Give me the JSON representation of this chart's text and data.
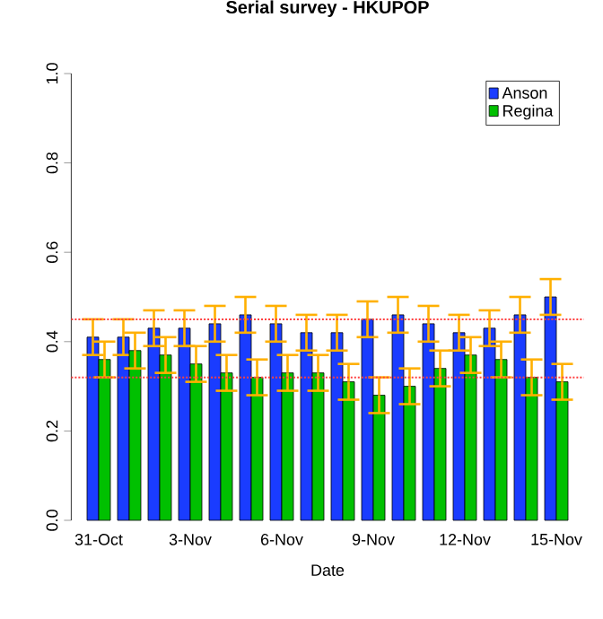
{
  "chart_data": {
    "type": "bar",
    "title": "Serial survey - HKUPOP",
    "xlabel": "Date",
    "categories": [
      "31-Oct",
      null,
      null,
      "3-Nov",
      null,
      null,
      "6-Nov",
      null,
      null,
      "9-Nov",
      null,
      null,
      "12-Nov",
      null,
      null,
      "15-Nov"
    ],
    "series": [
      {
        "name": "Anson",
        "color": "#1a3cff",
        "values": [
          0.41,
          0.41,
          0.43,
          0.43,
          0.44,
          0.46,
          0.44,
          0.42,
          0.42,
          0.45,
          0.46,
          0.44,
          0.42,
          0.43,
          0.46,
          0.5
        ],
        "errors": [
          0.04,
          0.04,
          0.04,
          0.04,
          0.04,
          0.04,
          0.04,
          0.04,
          0.04,
          0.04,
          0.04,
          0.04,
          0.04,
          0.04,
          0.04,
          0.04
        ]
      },
      {
        "name": "Regina",
        "color": "#00c000",
        "values": [
          0.36,
          0.38,
          0.37,
          0.35,
          0.33,
          0.32,
          0.33,
          0.33,
          0.31,
          0.28,
          0.3,
          0.34,
          0.37,
          0.36,
          0.32,
          0.31
        ],
        "errors": [
          0.04,
          0.04,
          0.04,
          0.04,
          0.04,
          0.04,
          0.04,
          0.04,
          0.04,
          0.04,
          0.04,
          0.04,
          0.04,
          0.04,
          0.04,
          0.04
        ]
      }
    ],
    "ylim": [
      0,
      1
    ],
    "yticks": [
      {
        "value": 0,
        "label": "0.0"
      },
      {
        "value": 0.2,
        "label": "0.2"
      },
      {
        "value": 0.4,
        "label": "0.4"
      },
      {
        "value": 0.6,
        "label": "0.6"
      },
      {
        "value": 0.8,
        "label": "0.8"
      },
      {
        "value": 1,
        "label": "1.0"
      }
    ],
    "ref_lines": [
      {
        "axis": "y",
        "value": 0.45,
        "color": "#ff4040",
        "line_style": "dotted"
      },
      {
        "axis": "y",
        "value": 0.32,
        "color": "#ff4040",
        "line_style": "dotted"
      }
    ],
    "legend": "top right"
  }
}
